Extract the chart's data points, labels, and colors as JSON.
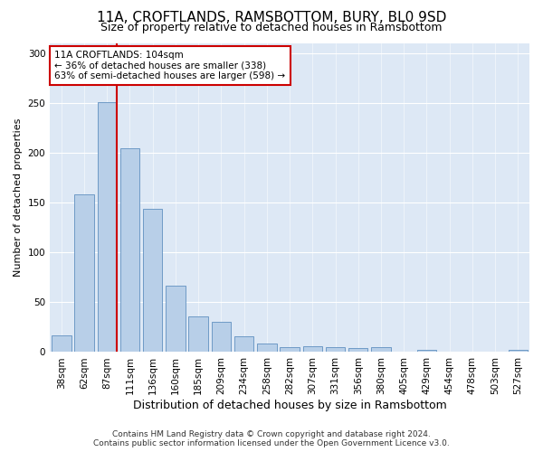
{
  "title_line1": "11A, CROFTLANDS, RAMSBOTTOM, BURY, BL0 9SD",
  "title_line2": "Size of property relative to detached houses in Ramsbottom",
  "xlabel": "Distribution of detached houses by size in Ramsbottom",
  "ylabel": "Number of detached properties",
  "categories": [
    "38sqm",
    "62sqm",
    "87sqm",
    "111sqm",
    "136sqm",
    "160sqm",
    "185sqm",
    "209sqm",
    "234sqm",
    "258sqm",
    "282sqm",
    "307sqm",
    "331sqm",
    "356sqm",
    "380sqm",
    "405sqm",
    "429sqm",
    "454sqm",
    "478sqm",
    "503sqm",
    "527sqm"
  ],
  "values": [
    17,
    158,
    251,
    204,
    144,
    67,
    36,
    30,
    16,
    9,
    5,
    6,
    5,
    4,
    5,
    0,
    2,
    0,
    0,
    0,
    2
  ],
  "bar_color": "#b8cfe8",
  "bar_edge_color": "#6090c0",
  "fig_background_color": "#ffffff",
  "ax_background_color": "#dde8f5",
  "vline_color": "#cc0000",
  "annotation_text": "11A CROFTLANDS: 104sqm\n← 36% of detached houses are smaller (338)\n63% of semi-detached houses are larger (598) →",
  "annotation_box_facecolor": "#ffffff",
  "annotation_box_edgecolor": "#cc0000",
  "ylim": [
    0,
    310
  ],
  "yticks": [
    0,
    50,
    100,
    150,
    200,
    250,
    300
  ],
  "title_fontsize": 11,
  "subtitle_fontsize": 9,
  "ylabel_fontsize": 8,
  "xlabel_fontsize": 9,
  "tick_fontsize": 7.5,
  "annotation_fontsize": 7.5,
  "footer_fontsize": 6.5,
  "footer_line1": "Contains HM Land Registry data © Crown copyright and database right 2024.",
  "footer_line2": "Contains public sector information licensed under the Open Government Licence v3.0."
}
